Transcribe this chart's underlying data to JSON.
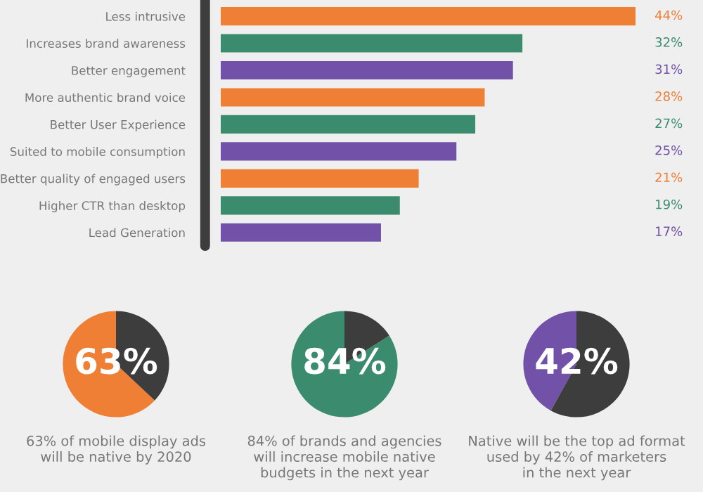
{
  "chart_data": [
    {
      "type": "bar",
      "orientation": "horizontal",
      "categories": [
        "Less intrusive",
        "Increases brand awareness",
        "Better engagement",
        "More authentic brand voice",
        "Better User Experience",
        "Suited to mobile consumption",
        "Better quality of engaged users",
        "Higher CTR than desktop",
        "Lead Generation"
      ],
      "values": [
        44,
        32,
        31,
        28,
        27,
        25,
        21,
        19,
        17
      ],
      "value_labels": [
        "44%",
        "32%",
        "31%",
        "28%",
        "27%",
        "25%",
        "21%",
        "19%",
        "17%"
      ],
      "colors": [
        "#ee7f35",
        "#3b8c6e",
        "#7252a8",
        "#ee7f35",
        "#3b8c6e",
        "#7252a8",
        "#ee7f35",
        "#3b8c6e",
        "#7252a8"
      ],
      "xlim": [
        0,
        44
      ],
      "tick_labels": "y",
      "grid": false,
      "legend": false
    },
    {
      "type": "pie",
      "categories": [
        null,
        null
      ],
      "values": [
        63,
        37
      ],
      "colors": [
        "#ee7f35",
        "#3d3d3d"
      ],
      "value_labels": [
        "63%",
        null
      ],
      "annotations": [
        "63% of mobile display ads\nwill be native by 2020"
      ]
    },
    {
      "type": "pie",
      "categories": [
        null,
        null
      ],
      "values": [
        84,
        16
      ],
      "colors": [
        "#3b8c6e",
        "#3d3d3d"
      ],
      "value_labels": [
        "84%",
        null
      ],
      "annotations": [
        "84% of brands and agencies\nwill increase mobile native\nbudgets in the next year"
      ]
    },
    {
      "type": "pie",
      "categories": [
        null,
        null
      ],
      "values": [
        42,
        58
      ],
      "colors": [
        "#7252a8",
        "#3d3d3d"
      ],
      "value_labels": [
        "42%",
        null
      ],
      "annotations": [
        "Native will be the top ad format\nused by 42% of marketers\nin the next year"
      ]
    }
  ]
}
